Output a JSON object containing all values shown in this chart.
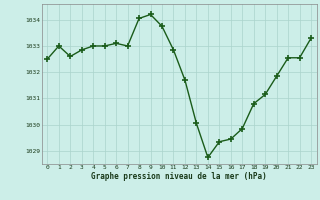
{
  "x": [
    0,
    1,
    2,
    3,
    4,
    5,
    6,
    7,
    8,
    9,
    10,
    11,
    12,
    13,
    14,
    15,
    16,
    17,
    18,
    19,
    20,
    21,
    22,
    23
  ],
  "y": [
    1032.5,
    1033.0,
    1032.6,
    1032.85,
    1033.0,
    1033.0,
    1033.1,
    1033.0,
    1034.05,
    1034.2,
    1033.75,
    1032.85,
    1031.7,
    1030.05,
    1028.75,
    1029.35,
    1029.45,
    1029.85,
    1030.8,
    1031.15,
    1031.85,
    1032.55,
    1032.55,
    1033.3
  ],
  "line_color": "#1a5c1a",
  "marker": "+",
  "markersize": 4,
  "bg_color": "#cceee8",
  "grid_color": "#aad4cc",
  "ylabel_ticks": [
    1029,
    1030,
    1031,
    1032,
    1033,
    1034
  ],
  "xlabel_ticks": [
    0,
    1,
    2,
    3,
    4,
    5,
    6,
    7,
    8,
    9,
    10,
    11,
    12,
    13,
    14,
    15,
    16,
    17,
    18,
    19,
    20,
    21,
    22,
    23
  ],
  "xlabel_labels": [
    "0",
    "1",
    "2",
    "3",
    "4",
    "5",
    "6",
    "7",
    "8",
    "9",
    "10",
    "11",
    "12",
    "13",
    "14",
    "15",
    "16",
    "17",
    "18",
    "19",
    "20",
    "21",
    "22",
    "23"
  ],
  "bottom_label": "Graphe pression niveau de la mer (hPa)",
  "ylim": [
    1028.5,
    1034.6
  ],
  "xlim": [
    -0.5,
    23.5
  ]
}
